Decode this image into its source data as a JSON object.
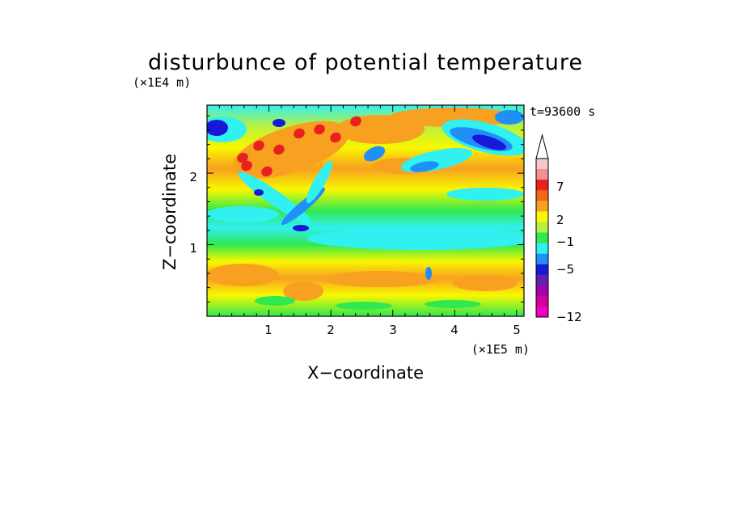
{
  "chart_data": {
    "type": "heatmap",
    "title": "disturbunce of potential temperature",
    "time_label": "t=93600 s",
    "xlabel": "X−coordinate",
    "ylabel": "Z−coordinate",
    "x_unit": "(×1E5 m)",
    "y_unit": "(×1E4 m)",
    "xlim": [
      0,
      5.12
    ],
    "ylim": [
      0,
      2.95
    ],
    "x_ticks": [
      "1",
      "2",
      "3",
      "4",
      "5"
    ],
    "y_ticks": [
      "1",
      "2"
    ],
    "colorbar": {
      "tick_labels": [
        "7",
        "2",
        "−1",
        "−5",
        "−12"
      ],
      "colors_top_to_bottom": [
        "#f8c8c8",
        "#f09090",
        "#e82020",
        "#f06818",
        "#f8a020",
        "#f8f800",
        "#b8f040",
        "#30e850",
        "#30f0f0",
        "#2090f8",
        "#1818d8",
        "#6020b0",
        "#a000b0",
        "#d000a0",
        "#f000c0"
      ]
    }
  }
}
